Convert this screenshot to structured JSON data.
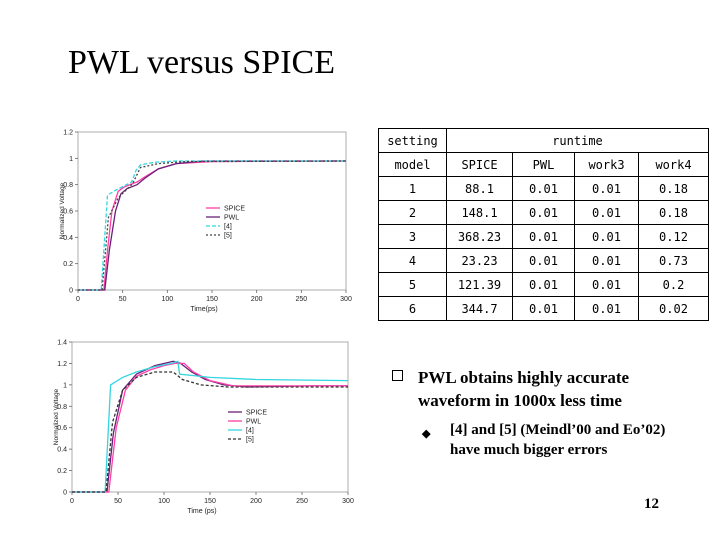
{
  "title": "PWL versus SPICE",
  "chart_data": [
    {
      "type": "line",
      "xlabel": "Time(ps)",
      "ylabel": "Normalized Voltage",
      "xlim": [
        0,
        300
      ],
      "ylim": [
        0,
        1.2
      ],
      "xticks": [
        "0",
        "50",
        "100",
        "150",
        "200",
        "250",
        "300"
      ],
      "yticks": [
        "0",
        "0.2",
        "0.4",
        "0.6",
        "0.8",
        "1",
        "1.2"
      ],
      "legend_position": "lower-right",
      "series": [
        {
          "name": "SPICE",
          "color": "#ff3fa6",
          "dash": "",
          "x": [
            0,
            29,
            33,
            38,
            45,
            51,
            58,
            66,
            75,
            90,
            110,
            150,
            300
          ],
          "y": [
            0,
            0,
            0.3,
            0.6,
            0.75,
            0.78,
            0.8,
            0.82,
            0.86,
            0.92,
            0.96,
            0.975,
            0.98
          ]
        },
        {
          "name": "PWL",
          "color": "#6a1f7a",
          "dash": "",
          "x": [
            0,
            30,
            35,
            42,
            48,
            55,
            66,
            75,
            90,
            110,
            140,
            300
          ],
          "y": [
            0,
            0,
            0.3,
            0.6,
            0.73,
            0.77,
            0.8,
            0.85,
            0.92,
            0.96,
            0.98,
            0.98
          ]
        },
        {
          "name": "[4]",
          "color": "#33d6e0",
          "dash": "4 2",
          "x": [
            0,
            26,
            33,
            40,
            60,
            65,
            70,
            85,
            110,
            150,
            300
          ],
          "y": [
            0,
            0,
            0.72,
            0.75,
            0.82,
            0.91,
            0.95,
            0.97,
            0.98,
            0.98,
            0.98
          ]
        },
        {
          "name": "[5]",
          "color": "#444444",
          "dash": "2 2",
          "x": [
            0,
            27,
            34,
            45,
            60,
            62,
            70,
            90,
            120,
            300
          ],
          "y": [
            0,
            0,
            0.55,
            0.7,
            0.8,
            0.82,
            0.93,
            0.96,
            0.975,
            0.98
          ]
        }
      ]
    },
    {
      "type": "line",
      "xlabel": "Time (ps)",
      "ylabel": "Normalized Voltage",
      "xlim": [
        0,
        300
      ],
      "ylim": [
        0,
        1.4
      ],
      "xticks": [
        "0",
        "50",
        "100",
        "150",
        "200",
        "250",
        "300"
      ],
      "yticks": [
        "0",
        "0.2",
        "0.4",
        "0.6",
        "0.8",
        "1",
        "1.2",
        "1.4"
      ],
      "legend_position": "lower-right",
      "series": [
        {
          "name": "SPICE",
          "color": "#6a1f7a",
          "dash": "",
          "x": [
            0,
            38,
            45,
            55,
            70,
            90,
            110,
            118,
            130,
            145,
            165,
            190,
            220,
            260,
            300
          ],
          "y": [
            0,
            0,
            0.55,
            0.95,
            1.1,
            1.18,
            1.22,
            1.2,
            1.12,
            1.05,
            1.0,
            0.98,
            0.985,
            0.99,
            0.99
          ]
        },
        {
          "name": "PWL",
          "color": "#ff3fa6",
          "dash": "",
          "x": [
            0,
            40,
            48,
            58,
            70,
            85,
            100,
            112,
            122,
            132,
            150,
            175,
            210,
            260,
            300
          ],
          "y": [
            0,
            0,
            0.6,
            0.95,
            1.08,
            1.14,
            1.18,
            1.2,
            1.2,
            1.12,
            1.04,
            0.99,
            0.99,
            0.99,
            0.99
          ]
        },
        {
          "name": "[4]",
          "color": "#33d6e0",
          "dash": "",
          "x": [
            0,
            36,
            42,
            55,
            70,
            90,
            108,
            115,
            117,
            150,
            200,
            300
          ],
          "y": [
            0,
            0,
            1.0,
            1.07,
            1.12,
            1.17,
            1.2,
            1.22,
            1.1,
            1.07,
            1.05,
            1.04
          ]
        },
        {
          "name": "[5]",
          "color": "#333333",
          "dash": "3 2",
          "x": [
            0,
            37,
            44,
            55,
            70,
            90,
            110,
            120,
            140,
            170,
            210,
            300
          ],
          "y": [
            0,
            0,
            0.65,
            0.95,
            1.07,
            1.12,
            1.12,
            1.05,
            1.0,
            0.98,
            0.98,
            0.98
          ]
        }
      ]
    }
  ],
  "table": {
    "header_row1": {
      "col1": "setting",
      "span": "runtime"
    },
    "header_row2": [
      "model",
      "SPICE",
      "PWL",
      "work3",
      "work4"
    ],
    "rows": [
      [
        "1",
        "88.1",
        "0.01",
        "0.01",
        "0.18"
      ],
      [
        "2",
        "148.1",
        "0.01",
        "0.01",
        "0.18"
      ],
      [
        "3",
        "368.23",
        "0.01",
        "0.01",
        "0.12"
      ],
      [
        "4",
        "23.23",
        "0.01",
        "0.01",
        "0.73"
      ],
      [
        "5",
        "121.39",
        "0.01",
        "0.01",
        "0.2"
      ],
      [
        "6",
        "344.7",
        "0.01",
        "0.01",
        "0.02"
      ]
    ]
  },
  "bullets": {
    "main": "PWL obtains highly accurate waveform in 1000x less time",
    "sub": "[4] and [5] (Meindl’00 and Eo’02) have much bigger errors"
  },
  "page_number": "12"
}
